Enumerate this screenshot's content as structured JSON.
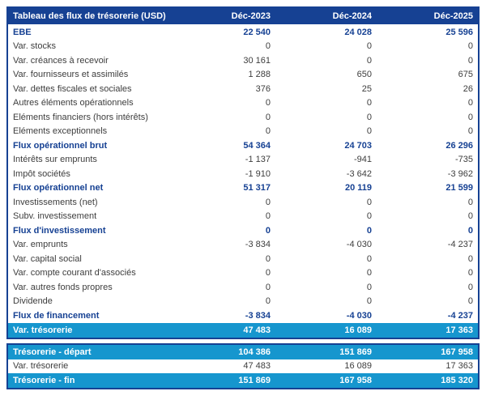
{
  "colors": {
    "navy": "#164193",
    "cyan": "#1696ce",
    "body_text": "#3d3d3d"
  },
  "table": {
    "title": "Tableau des flux de trésorerie (USD)",
    "columns": [
      "Déc-2023",
      "Déc-2024",
      "Déc-2025"
    ],
    "rows": [
      {
        "label": "EBE",
        "values": [
          "22 540",
          "24 028",
          "25 596"
        ],
        "style": "subtotal"
      },
      {
        "label": "Var. stocks",
        "values": [
          "0",
          "0",
          "0"
        ],
        "style": "normal"
      },
      {
        "label": "Var. créances à recevoir",
        "values": [
          "30 161",
          "0",
          "0"
        ],
        "style": "normal"
      },
      {
        "label": "Var. fournisseurs et assimilés",
        "values": [
          "1 288",
          "650",
          "675"
        ],
        "style": "normal"
      },
      {
        "label": "Var. dettes fiscales et sociales",
        "values": [
          "376",
          "25",
          "26"
        ],
        "style": "normal"
      },
      {
        "label": "Autres éléments opérationnels",
        "values": [
          "0",
          "0",
          "0"
        ],
        "style": "normal"
      },
      {
        "label": "Eléments financiers (hors intérêts)",
        "values": [
          "0",
          "0",
          "0"
        ],
        "style": "normal"
      },
      {
        "label": "Eléments exceptionnels",
        "values": [
          "0",
          "0",
          "0"
        ],
        "style": "normal"
      },
      {
        "label": "Flux opérationnel brut",
        "values": [
          "54 364",
          "24 703",
          "26 296"
        ],
        "style": "subtotal"
      },
      {
        "label": "Intérêts sur emprunts",
        "values": [
          "-1 137",
          "-941",
          "-735"
        ],
        "style": "normal"
      },
      {
        "label": "Impôt sociétés",
        "values": [
          "-1 910",
          "-3 642",
          "-3 962"
        ],
        "style": "normal"
      },
      {
        "label": "Flux opérationnel net",
        "values": [
          "51 317",
          "20 119",
          "21 599"
        ],
        "style": "subtotal"
      },
      {
        "label": "Investissements (net)",
        "values": [
          "0",
          "0",
          "0"
        ],
        "style": "normal"
      },
      {
        "label": "Subv. investissement",
        "values": [
          "0",
          "0",
          "0"
        ],
        "style": "normal"
      },
      {
        "label": "Flux d'investissement",
        "values": [
          "0",
          "0",
          "0"
        ],
        "style": "subtotal"
      },
      {
        "label": "Var. emprunts",
        "values": [
          "-3 834",
          "-4 030",
          "-4 237"
        ],
        "style": "normal"
      },
      {
        "label": "Var. capital social",
        "values": [
          "0",
          "0",
          "0"
        ],
        "style": "normal"
      },
      {
        "label": "Var. compte courant d'associés",
        "values": [
          "0",
          "0",
          "0"
        ],
        "style": "normal"
      },
      {
        "label": "Var. autres fonds propres",
        "values": [
          "0",
          "0",
          "0"
        ],
        "style": "normal"
      },
      {
        "label": "Dividende",
        "values": [
          "0",
          "0",
          "0"
        ],
        "style": "normal"
      },
      {
        "label": "Flux de financement",
        "values": [
          "-3 834",
          "-4 030",
          "-4 237"
        ],
        "style": "subtotal"
      },
      {
        "label": "Var. trésorerie",
        "values": [
          "47 483",
          "16 089",
          "17 363"
        ],
        "style": "highlight"
      }
    ],
    "summary_rows": [
      {
        "label": "Trésorerie - départ",
        "values": [
          "104 386",
          "151 869",
          "167 958"
        ],
        "style": "highlight"
      },
      {
        "label": "Var. trésorerie",
        "values": [
          "47 483",
          "16 089",
          "17 363"
        ],
        "style": "normal"
      },
      {
        "label": "Trésorerie - fin",
        "values": [
          "151 869",
          "167 958",
          "185 320"
        ],
        "style": "highlight"
      }
    ]
  }
}
